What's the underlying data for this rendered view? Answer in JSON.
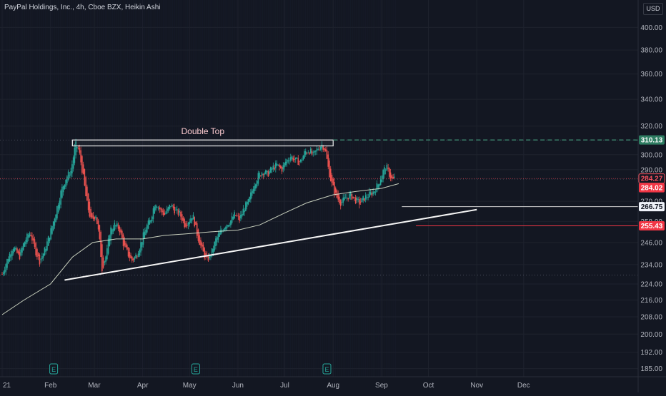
{
  "header": {
    "symbol": "PayPal Holdings, Inc.",
    "interval": "4h",
    "exchange": "Cboe BZX",
    "chart_style": "Heikin Ashi",
    "currency": "USD"
  },
  "colors": {
    "background": "#131722",
    "up": "#26a69a",
    "down": "#ef5350",
    "grid": "#1e222d",
    "axis_text": "#b2b5be",
    "ma_line": "#e8f0d8",
    "trendline": "#f5f5f5",
    "annotation": "#ffcdd2",
    "green_line": "#4caf8a",
    "red_line": "#f23645"
  },
  "annotations": {
    "double_top_label": "Double Top",
    "earnings_marker": "E"
  },
  "price_labels": [
    {
      "value": "310.13",
      "price": 310.13,
      "style": "green"
    },
    {
      "value": "284.27",
      "price": 284.27,
      "style": "red-outline"
    },
    {
      "value": "284.02",
      "price": 284.02,
      "style": "red"
    },
    {
      "value": "266.75",
      "price": 266.75,
      "style": "white"
    },
    {
      "value": "255.43",
      "price": 255.43,
      "style": "red"
    }
  ],
  "chart_data": {
    "type": "candlestick",
    "title": "PayPal Holdings, Inc., 4h, Cboe BZX, Heikin Ashi",
    "y_scale": "log",
    "ylim": [
      184,
      412
    ],
    "y_ticks": [
      "400.00",
      "380.00",
      "360.00",
      "340.00",
      "320.00",
      "300.00",
      "290.00",
      "270.00",
      "258.00",
      "246.00",
      "234.00",
      "224.00",
      "216.00",
      "208.00",
      "200.00",
      "192.00",
      "185.00"
    ],
    "y_tick_values": [
      400,
      380,
      360,
      340,
      320,
      300,
      290,
      270,
      258,
      246,
      234,
      224,
      216,
      208,
      200,
      192,
      185
    ],
    "x_ticks": [
      "21",
      "Feb",
      "Mar",
      "Apr",
      "May",
      "Jun",
      "Jul",
      "Aug",
      "Sep",
      "Oct",
      "Nov",
      "Dec"
    ],
    "x_tick_dates": [
      "2021-01-01",
      "2021-02-01",
      "2021-03-01",
      "2021-04-01",
      "2021-05-01",
      "2021-06-01",
      "2021-07-01",
      "2021-08-01",
      "2021-09-01",
      "2021-10-01",
      "2021-11-01",
      "2021-12-01"
    ],
    "earnings_dates": [
      "2021-02-03",
      "2021-05-05",
      "2021-07-28"
    ],
    "price_path": [
      [
        "2021-01-01",
        229
      ],
      [
        "2021-01-04",
        236
      ],
      [
        "2021-01-08",
        244
      ],
      [
        "2021-01-12",
        238
      ],
      [
        "2021-01-15",
        246
      ],
      [
        "2021-01-19",
        252
      ],
      [
        "2021-01-22",
        242
      ],
      [
        "2021-01-25",
        236
      ],
      [
        "2021-01-28",
        241
      ],
      [
        "2021-02-01",
        252
      ],
      [
        "2021-02-04",
        262
      ],
      [
        "2021-02-08",
        277
      ],
      [
        "2021-02-11",
        285
      ],
      [
        "2021-02-14",
        289
      ],
      [
        "2021-02-17",
        307
      ],
      [
        "2021-02-19",
        304
      ],
      [
        "2021-02-22",
        285
      ],
      [
        "2021-02-24",
        270
      ],
      [
        "2021-02-27",
        258
      ],
      [
        "2021-03-02",
        262
      ],
      [
        "2021-03-04",
        250
      ],
      [
        "2021-03-06",
        232
      ],
      [
        "2021-03-09",
        240
      ],
      [
        "2021-03-11",
        253
      ],
      [
        "2021-03-14",
        256
      ],
      [
        "2021-03-17",
        254
      ],
      [
        "2021-03-20",
        244
      ],
      [
        "2021-03-23",
        239
      ],
      [
        "2021-03-25",
        236
      ],
      [
        "2021-03-28",
        239
      ],
      [
        "2021-03-31",
        246
      ],
      [
        "2021-04-03",
        254
      ],
      [
        "2021-04-06",
        259
      ],
      [
        "2021-04-09",
        270
      ],
      [
        "2021-04-12",
        265
      ],
      [
        "2021-04-15",
        262
      ],
      [
        "2021-04-19",
        268
      ],
      [
        "2021-04-22",
        264
      ],
      [
        "2021-04-25",
        262
      ],
      [
        "2021-04-28",
        256
      ],
      [
        "2021-05-01",
        259
      ],
      [
        "2021-05-03",
        262
      ],
      [
        "2021-05-06",
        250
      ],
      [
        "2021-05-09",
        242
      ],
      [
        "2021-05-12",
        236
      ],
      [
        "2021-05-15",
        240
      ],
      [
        "2021-05-18",
        248
      ],
      [
        "2021-05-21",
        252
      ],
      [
        "2021-05-24",
        256
      ],
      [
        "2021-05-27",
        258
      ],
      [
        "2021-05-30",
        262
      ],
      [
        "2021-06-02",
        259
      ],
      [
        "2021-06-05",
        266
      ],
      [
        "2021-06-08",
        270
      ],
      [
        "2021-06-11",
        280
      ],
      [
        "2021-06-14",
        286
      ],
      [
        "2021-06-17",
        289
      ],
      [
        "2021-06-20",
        287
      ],
      [
        "2021-06-23",
        291
      ],
      [
        "2021-06-26",
        293
      ],
      [
        "2021-06-29",
        290
      ],
      [
        "2021-07-02",
        296
      ],
      [
        "2021-07-05",
        299
      ],
      [
        "2021-07-08",
        296
      ],
      [
        "2021-07-11",
        295
      ],
      [
        "2021-07-14",
        302
      ],
      [
        "2021-07-17",
        303
      ],
      [
        "2021-07-19",
        299
      ],
      [
        "2021-07-22",
        304
      ],
      [
        "2021-07-25",
        307
      ],
      [
        "2021-07-27",
        303
      ],
      [
        "2021-07-29",
        290
      ],
      [
        "2021-07-31",
        281
      ],
      [
        "2021-08-03",
        273
      ],
      [
        "2021-08-06",
        269
      ],
      [
        "2021-08-09",
        272
      ],
      [
        "2021-08-12",
        274
      ],
      [
        "2021-08-15",
        271
      ],
      [
        "2021-08-18",
        269
      ],
      [
        "2021-08-21",
        272
      ],
      [
        "2021-08-24",
        274
      ],
      [
        "2021-08-27",
        276
      ],
      [
        "2021-08-30",
        281
      ],
      [
        "2021-09-02",
        289
      ],
      [
        "2021-09-04",
        292
      ],
      [
        "2021-09-06",
        287
      ],
      [
        "2021-09-08",
        283
      ],
      [
        "2021-09-10",
        285
      ]
    ],
    "ma_path": [
      [
        "2021-01-01",
        209
      ],
      [
        "2021-01-15",
        216
      ],
      [
        "2021-02-01",
        224
      ],
      [
        "2021-02-15",
        238
      ],
      [
        "2021-02-28",
        246
      ],
      [
        "2021-03-15",
        248
      ],
      [
        "2021-04-01",
        248
      ],
      [
        "2021-04-15",
        250
      ],
      [
        "2021-05-01",
        251
      ],
      [
        "2021-05-15",
        252
      ],
      [
        "2021-06-01",
        253
      ],
      [
        "2021-06-15",
        256
      ],
      [
        "2021-07-01",
        263
      ],
      [
        "2021-07-15",
        269
      ],
      [
        "2021-08-01",
        274
      ],
      [
        "2021-08-15",
        276
      ],
      [
        "2021-09-01",
        278
      ],
      [
        "2021-09-12",
        281
      ]
    ],
    "drawings": {
      "double_top_box": {
        "start": "2021-02-15",
        "end": "2021-08-01",
        "top": 310.13,
        "bottom": 306
      },
      "support_trendline": {
        "start": [
          "2021-02-10",
          226
        ],
        "end": [
          "2021-11-01",
          265
        ]
      },
      "green_dashed_level": 310.13,
      "white_level": {
        "start": "2021-09-14",
        "price": 266.75
      },
      "red_level": {
        "start": "2021-09-23",
        "price": 255.43
      }
    },
    "grid": true
  }
}
